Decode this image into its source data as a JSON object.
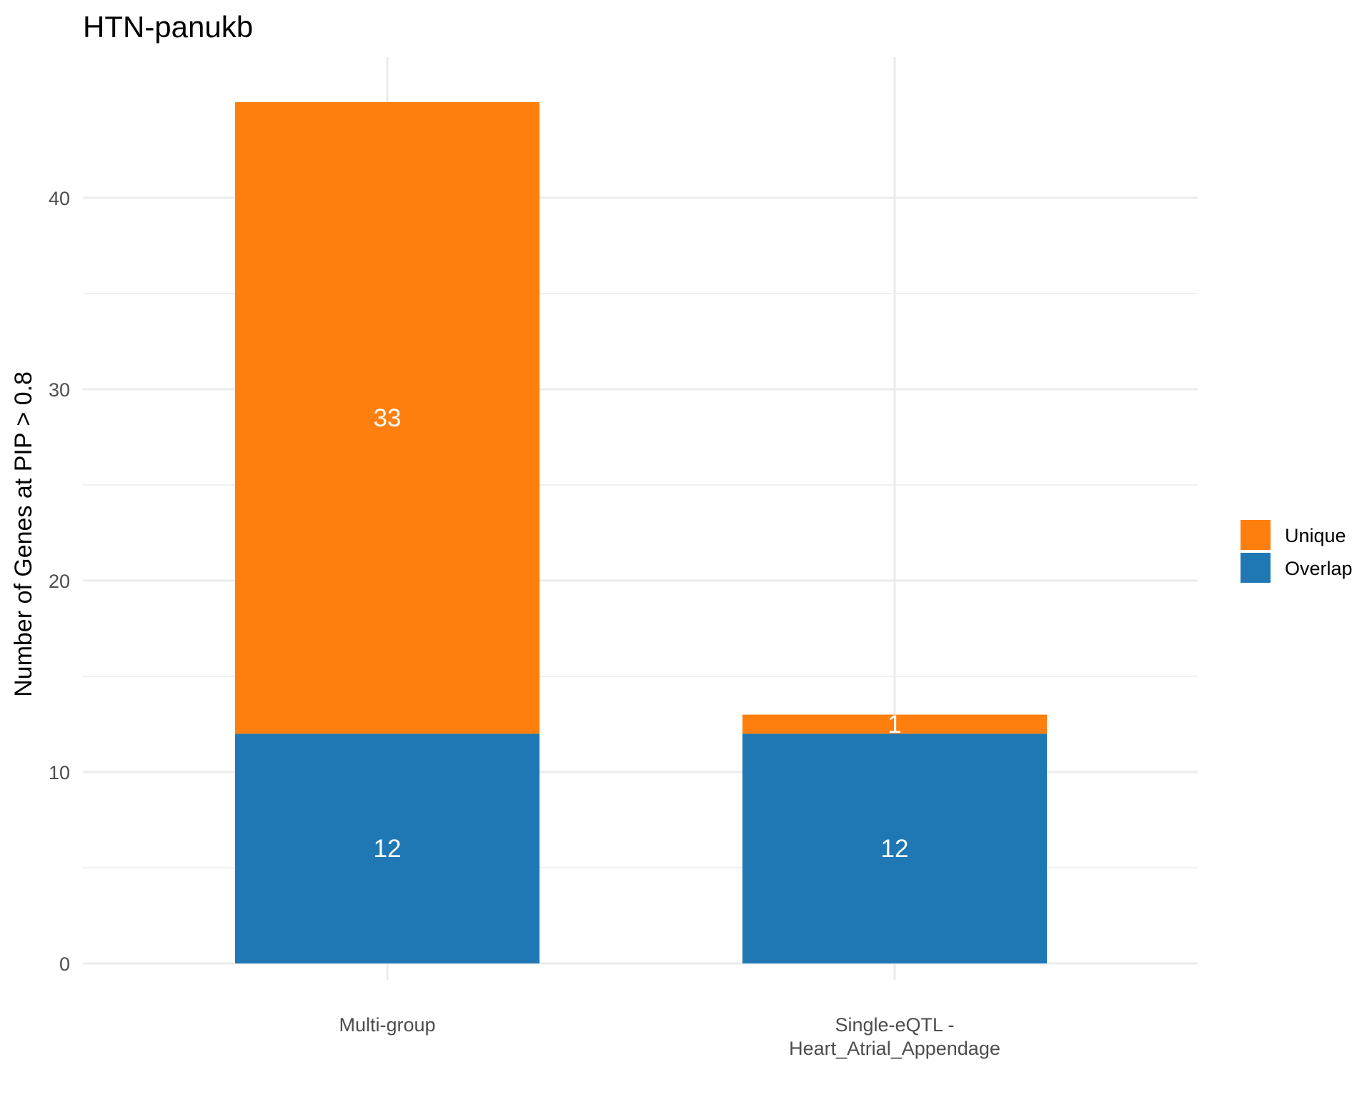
{
  "chart_data": {
    "type": "bar",
    "stacked": true,
    "title": "HTN-panukb",
    "xlabel": "",
    "ylabel": "Number of Genes at PIP > 0.8",
    "categories": [
      [
        "Multi-group"
      ],
      [
        "Single-eQTL -",
        "Heart_Atrial_Appendage"
      ]
    ],
    "series": [
      {
        "name": "Overlap",
        "color": "#1f78b4",
        "values": [
          12,
          12
        ]
      },
      {
        "name": "Unique",
        "color": "#ff7f0e",
        "values": [
          33,
          1
        ]
      }
    ],
    "legend_order": [
      "Unique",
      "Overlap"
    ],
    "legend_position": "right",
    "ylim": [
      0,
      45
    ],
    "yticks": [
      0,
      10,
      20,
      30,
      40
    ],
    "grid": true,
    "data_labels": true
  }
}
